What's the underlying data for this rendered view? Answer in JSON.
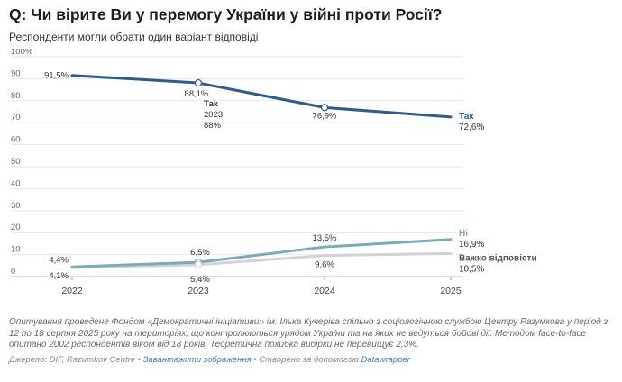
{
  "header": {
    "title": "Q: Чи вірите Ви у перемогу України у війні проти Росії?",
    "subtitle": "Респонденти могли обрати один варіант відповіді"
  },
  "chart_data": {
    "type": "line",
    "title": "Q: Чи вірите Ви у перемогу України у війні проти Росії?",
    "subtitle": "Респонденти могли обрати один варіант відповіді",
    "x": [
      "2022",
      "2023",
      "2024",
      "2025"
    ],
    "ylim": [
      0,
      100
    ],
    "yticks": [
      "0",
      "10",
      "20",
      "30",
      "40",
      "50",
      "60",
      "70",
      "80",
      "90",
      "100%"
    ],
    "grid": true,
    "series": [
      {
        "name": "Так",
        "color": "#2f5b8f",
        "values": [
          91.5,
          88.1,
          76.9,
          72.6
        ],
        "labels": [
          "91,5%",
          "88,1%",
          "76,9%",
          "72,6%"
        ]
      },
      {
        "name": "Ні",
        "color": "#79abb9",
        "values": [
          4.4,
          6.5,
          13.5,
          16.9
        ],
        "labels": [
          "4,4%",
          "6,5%",
          "13,5%",
          "16,9%"
        ]
      },
      {
        "name": "Важко відповісти",
        "color": "#d2d2d2",
        "values": [
          4.1,
          5.4,
          9.6,
          10.5
        ],
        "labels": [
          "4,1%",
          "5,4%",
          "9,6%",
          "10,5%"
        ]
      }
    ],
    "tooltip": {
      "series": "Так",
      "year": "2023",
      "value": "88%"
    }
  },
  "footer": {
    "note": "Опитування проведене Фондом «Демократичні ініціативи» ім. Ілька Кучеріва спільно з соціологічною службою Центру Разумкова у період з 12 по 18 серпня 2025 року на територіях, що контролюються урядом України та на яких не ведуться бойові дії. Методом face-to-face опитано 2002 респондентів віком від 18 років. Теоретична похибка вибірки не перевищує 2,3%.",
    "source": "Джерело: DIF, Razumkov Centre",
    "sep1": " • ",
    "download": "Завантажити зображення",
    "sep2": " • Створено за допомогою ",
    "tool": "Datawrapper"
  }
}
